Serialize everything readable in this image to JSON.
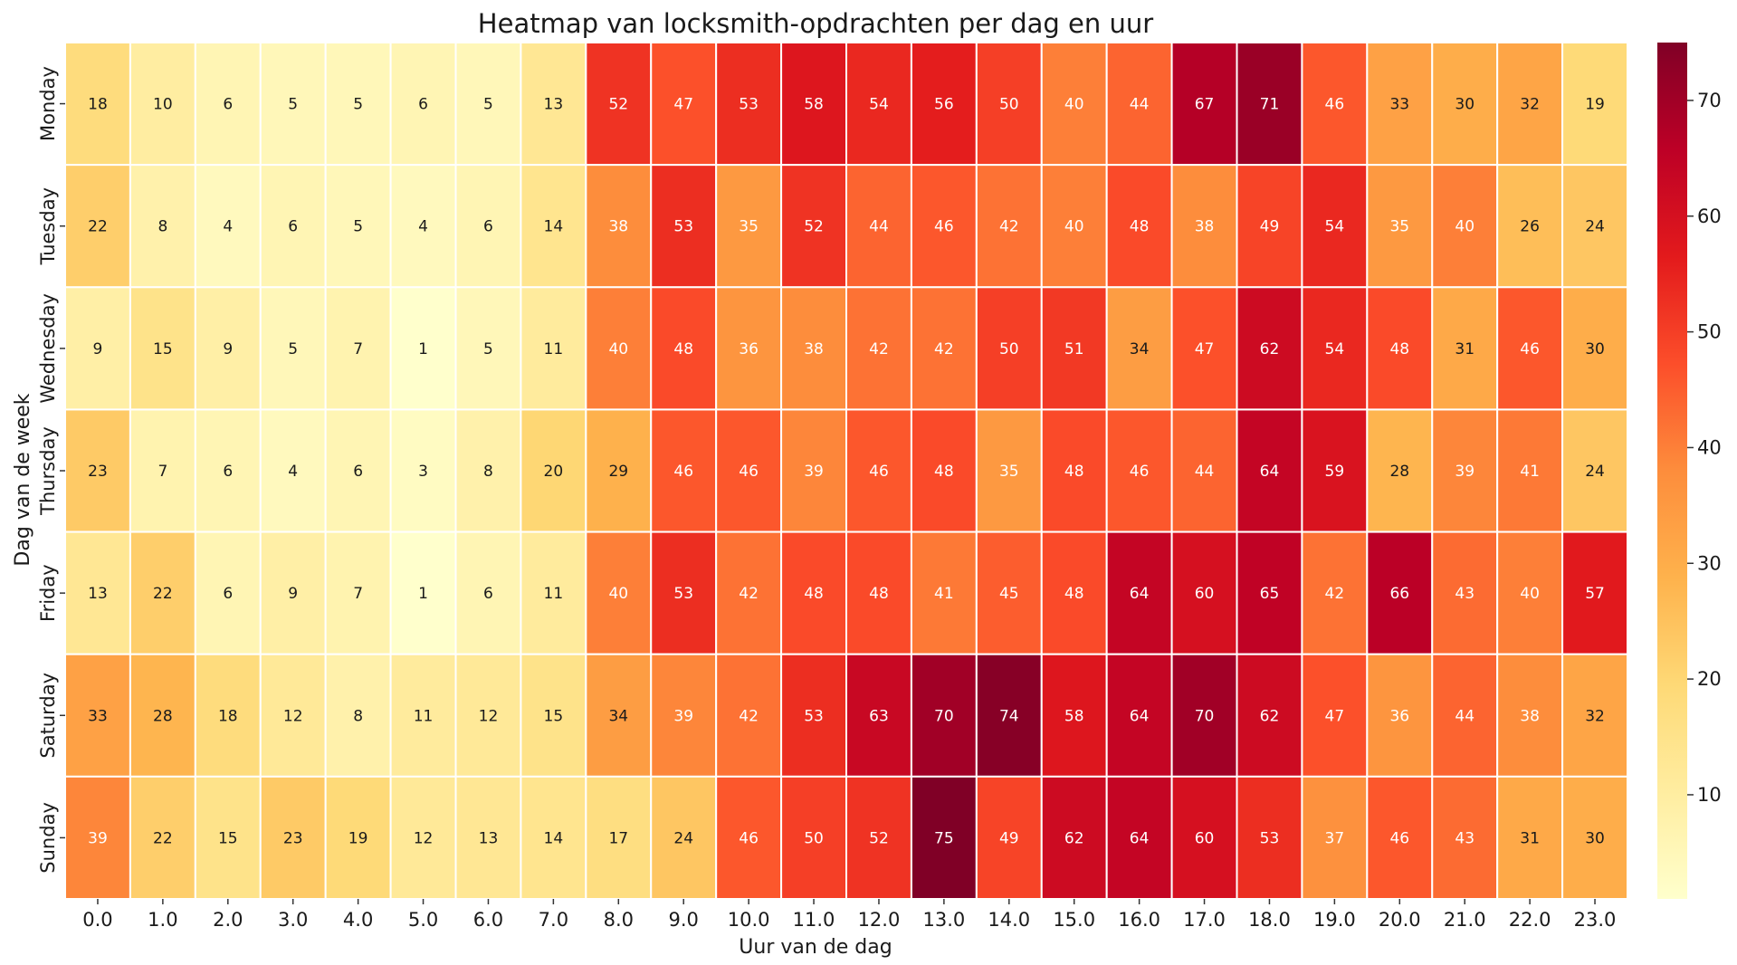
{
  "chart_data": {
    "type": "heatmap",
    "title": "Heatmap van locksmith-opdrachten per dag en uur",
    "xlabel": "Uur van de dag",
    "ylabel": "Dag van de week",
    "x_categories": [
      "0.0",
      "1.0",
      "2.0",
      "3.0",
      "4.0",
      "5.0",
      "6.0",
      "7.0",
      "8.0",
      "9.0",
      "10.0",
      "11.0",
      "12.0",
      "13.0",
      "14.0",
      "15.0",
      "16.0",
      "17.0",
      "18.0",
      "19.0",
      "20.0",
      "21.0",
      "22.0",
      "23.0"
    ],
    "y_categories": [
      "Monday",
      "Tuesday",
      "Wednesday",
      "Thursday",
      "Friday",
      "Saturday",
      "Sunday"
    ],
    "values": [
      [
        18,
        10,
        6,
        5,
        5,
        6,
        5,
        13,
        52,
        47,
        53,
        58,
        54,
        56,
        50,
        40,
        44,
        67,
        71,
        46,
        33,
        30,
        32,
        19
      ],
      [
        22,
        8,
        4,
        6,
        5,
        4,
        6,
        14,
        38,
        53,
        35,
        52,
        44,
        46,
        42,
        40,
        48,
        38,
        49,
        54,
        35,
        40,
        26,
        24
      ],
      [
        9,
        15,
        9,
        5,
        7,
        1,
        5,
        11,
        40,
        48,
        36,
        38,
        42,
        42,
        50,
        51,
        34,
        47,
        62,
        54,
        48,
        31,
        46,
        30
      ],
      [
        23,
        7,
        6,
        4,
        6,
        3,
        8,
        20,
        29,
        46,
        46,
        39,
        46,
        48,
        35,
        48,
        46,
        44,
        64,
        59,
        28,
        39,
        41,
        24
      ],
      [
        13,
        22,
        6,
        9,
        7,
        1,
        6,
        11,
        40,
        53,
        42,
        48,
        48,
        41,
        45,
        48,
        64,
        60,
        65,
        42,
        66,
        43,
        40,
        57
      ],
      [
        33,
        28,
        18,
        12,
        8,
        11,
        12,
        15,
        34,
        39,
        42,
        53,
        63,
        70,
        74,
        58,
        64,
        70,
        62,
        47,
        36,
        44,
        38,
        32
      ],
      [
        39,
        22,
        15,
        23,
        19,
        12,
        13,
        14,
        17,
        24,
        46,
        50,
        52,
        75,
        49,
        62,
        64,
        60,
        53,
        37,
        46,
        43,
        31,
        30
      ]
    ],
    "colormap": "YlOrRd",
    "vmin": 1,
    "vmax": 75,
    "colorbar": {
      "ticks": [
        10,
        20,
        30,
        40,
        50,
        60,
        70
      ],
      "labels": [
        "10",
        "20",
        "30",
        "40",
        "50",
        "60",
        "70"
      ]
    },
    "annotations": true
  }
}
